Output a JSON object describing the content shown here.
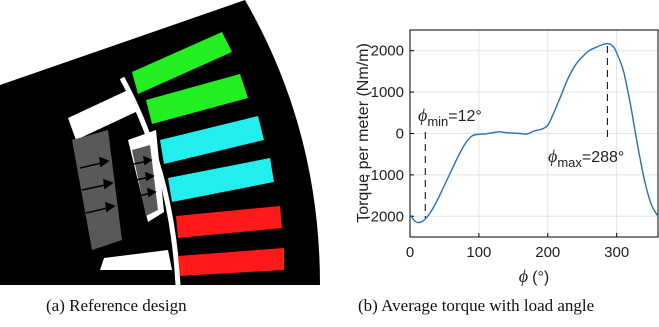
{
  "captions": {
    "a": "(a) Reference design",
    "b": "(b) Average torque with load angle"
  },
  "colors": {
    "stator": "#000000",
    "magnet": "#595959",
    "green_coil": "#22ee22",
    "cyan_coil": "#22eeee",
    "red_coil": "#ff1a1a",
    "curve": "#2a6fb5"
  },
  "chart_data": {
    "type": "line",
    "xlabel_symbol": "ϕ",
    "xlabel_unit": "(°)",
    "ylabel": "Torque per meter (Nm/m)",
    "xlim": [
      0,
      360
    ],
    "ylim": [
      -2500,
      2500
    ],
    "xticks": [
      0,
      100,
      200,
      300
    ],
    "yticks": [
      -2000,
      -1000,
      0,
      1000,
      2000
    ],
    "grid": true,
    "x": [
      0,
      6,
      12,
      20,
      30,
      40,
      50,
      60,
      70,
      80,
      90,
      100,
      110,
      120,
      130,
      140,
      150,
      160,
      170,
      180,
      190,
      200,
      210,
      220,
      230,
      240,
      250,
      260,
      270,
      280,
      288,
      295,
      300,
      310,
      320,
      330,
      340,
      350,
      360
    ],
    "values": [
      -1950,
      -2100,
      -2150,
      -2100,
      -1900,
      -1600,
      -1250,
      -900,
      -550,
      -250,
      -60,
      -20,
      -10,
      20,
      40,
      20,
      10,
      0,
      -10,
      60,
      100,
      200,
      550,
      950,
      1350,
      1650,
      1850,
      2000,
      2080,
      2150,
      2170,
      2100,
      1950,
      1500,
      700,
      -250,
      -1100,
      -1700,
      -2000
    ],
    "annotations": [
      {
        "sym": "ϕ",
        "sub": "min",
        "value": "=12°",
        "x": 12
      },
      {
        "sym": "ϕ",
        "sub": "max",
        "value": "=288°",
        "x": 288
      }
    ]
  }
}
